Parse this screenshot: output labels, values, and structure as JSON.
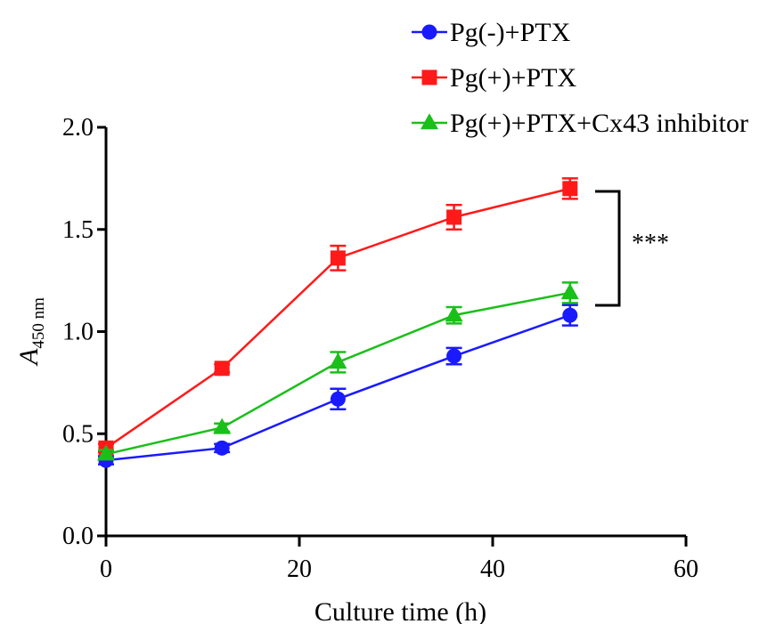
{
  "chart_data": {
    "type": "line",
    "title": "",
    "xlabel": "Culture time (h)",
    "ylabel_main": "A",
    "ylabel_sub": "450 nm",
    "xlim": [
      0,
      60
    ],
    "ylim": [
      0,
      2.0
    ],
    "xticks": [
      "0",
      "20",
      "40",
      "60"
    ],
    "yticks": [
      "0.0",
      "0.5",
      "1.0",
      "1.5",
      "2.0"
    ],
    "x": [
      0,
      12,
      24,
      36,
      48
    ],
    "grid": false,
    "legend_position": "top-right",
    "series": [
      {
        "name": "Pg(-)+PTX",
        "color": "#1a1aff",
        "marker": "circle",
        "values": [
          0.37,
          0.43,
          0.67,
          0.88,
          1.08
        ],
        "errors": [
          0.02,
          0.02,
          0.05,
          0.04,
          0.05
        ]
      },
      {
        "name": "Pg(+)+PTX",
        "color": "#ff1a1a",
        "marker": "square",
        "values": [
          0.43,
          0.82,
          1.36,
          1.56,
          1.7
        ],
        "errors": [
          0.02,
          0.02,
          0.06,
          0.06,
          0.05
        ]
      },
      {
        "name": "Pg(+)+PTX+Cx43 inhibitor",
        "color": "#1abf1a",
        "marker": "triangle",
        "values": [
          0.4,
          0.53,
          0.85,
          1.08,
          1.19
        ],
        "errors": [
          0.02,
          0.02,
          0.05,
          0.04,
          0.05
        ]
      }
    ],
    "annotation": "***"
  }
}
